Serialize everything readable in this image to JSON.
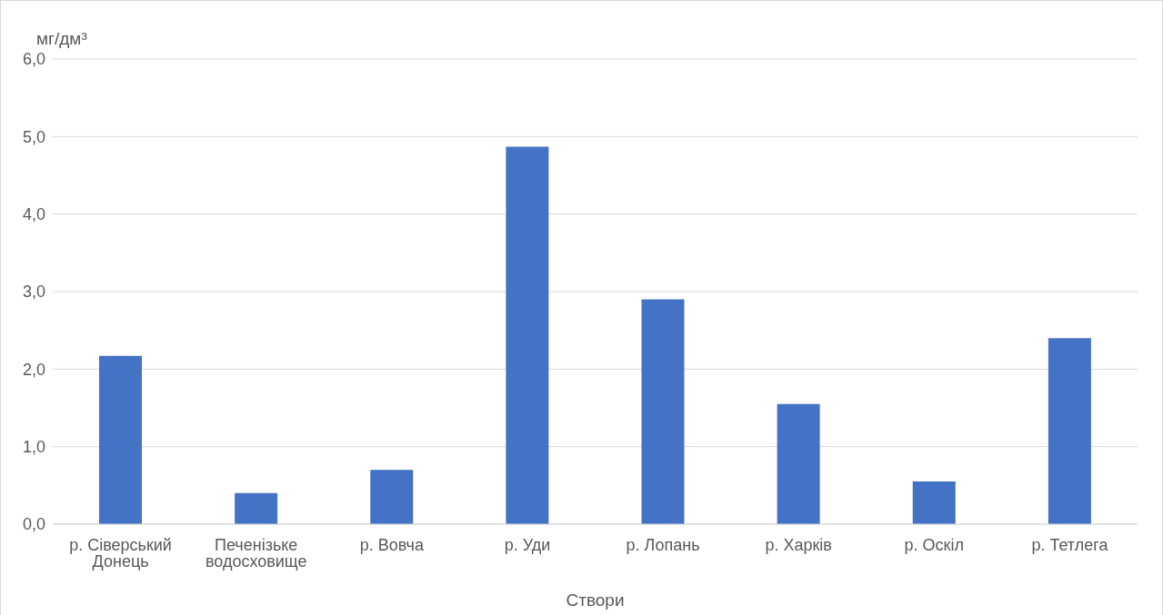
{
  "chart_data": {
    "type": "bar",
    "xlabel": "Створи",
    "ylabel": "мг/дм³",
    "categories": [
      "р. Сіверський Донець",
      "Печенізьке водосховище",
      "р. Вовча",
      "р. Уди",
      "р. Лопань",
      "р. Харків",
      "р. Оскіл",
      "р. Тетлега"
    ],
    "values": [
      2.17,
      0.4,
      0.7,
      4.87,
      2.9,
      1.55,
      0.55,
      2.4
    ],
    "color": "#4472c4",
    "ylim": [
      0,
      6
    ],
    "yticks": [
      {
        "value": 0,
        "label": "0,0"
      },
      {
        "value": 1,
        "label": "1,0"
      },
      {
        "value": 2,
        "label": "2,0"
      },
      {
        "value": 3,
        "label": "3,0"
      },
      {
        "value": 4,
        "label": "4,0"
      },
      {
        "value": 5,
        "label": "5,0"
      },
      {
        "value": 6,
        "label": "6,0"
      }
    ],
    "grid": "y"
  }
}
